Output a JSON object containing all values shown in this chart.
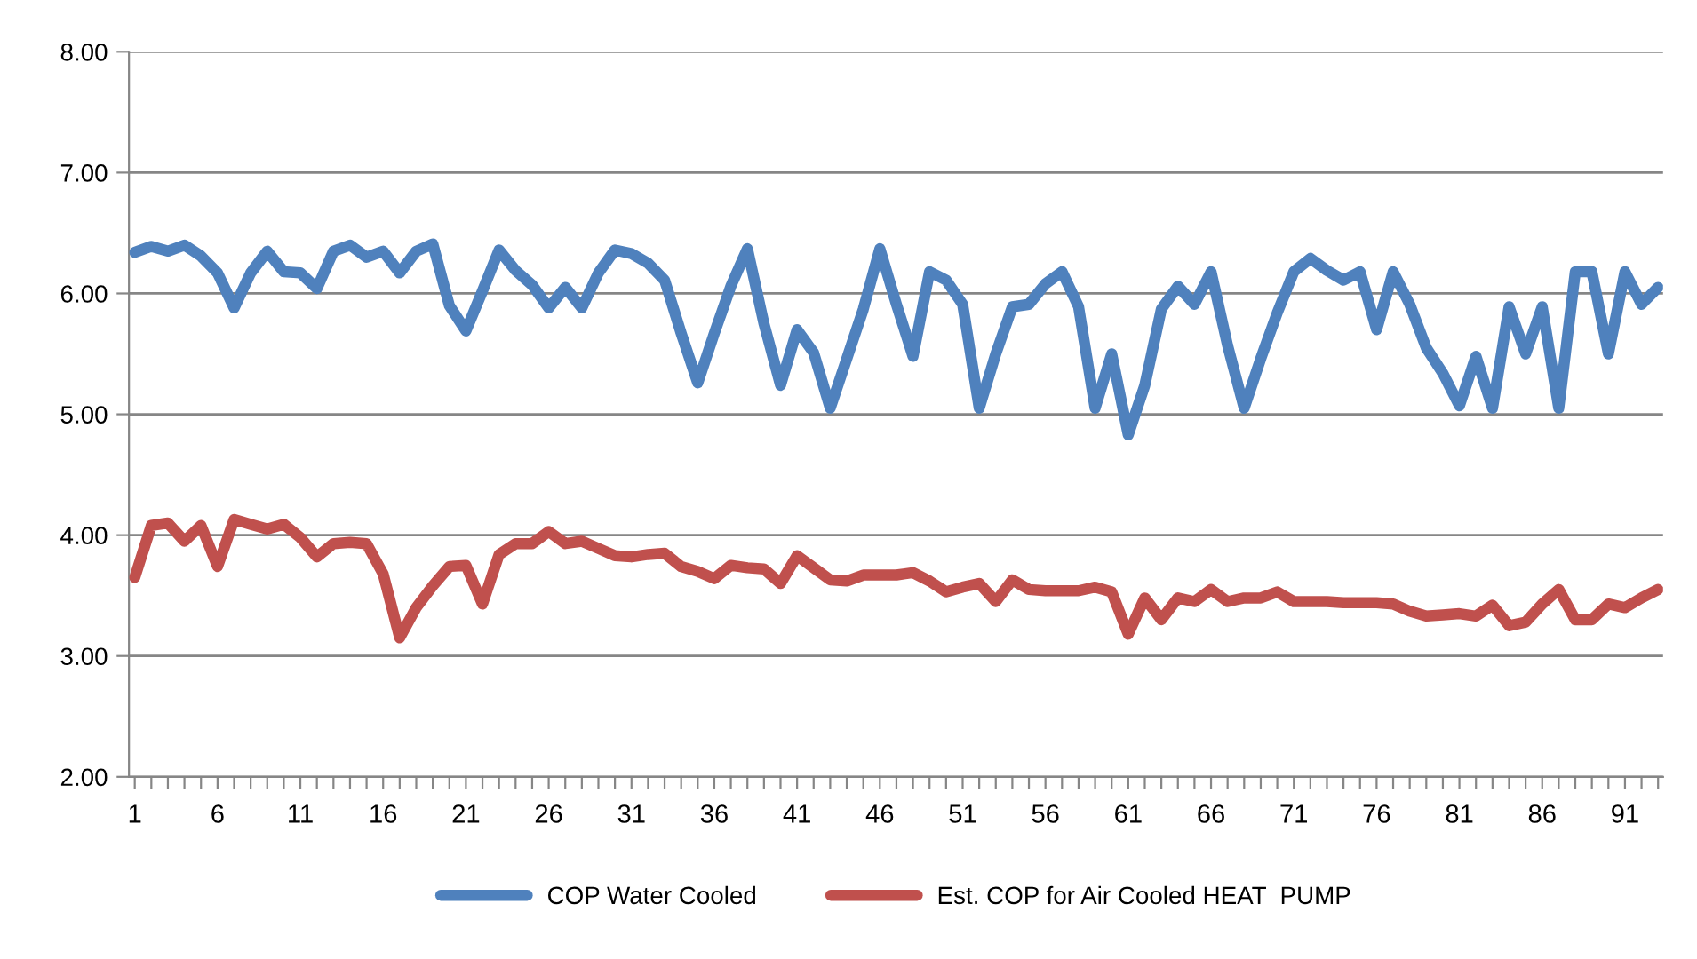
{
  "chart_data": {
    "type": "line",
    "categories": [
      "1",
      null,
      null,
      null,
      null,
      "6",
      null,
      null,
      null,
      null,
      "11",
      null,
      null,
      null,
      null,
      "16",
      null,
      null,
      null,
      null,
      "21",
      null,
      null,
      null,
      null,
      "26",
      null,
      null,
      null,
      null,
      "31",
      null,
      null,
      null,
      null,
      "36",
      null,
      null,
      null,
      null,
      "41",
      null,
      null,
      null,
      null,
      "46",
      null,
      null,
      null,
      null,
      "51",
      null,
      null,
      null,
      null,
      "56",
      null,
      null,
      null,
      null,
      "61",
      null,
      null,
      null,
      null,
      "66",
      null,
      null,
      null,
      null,
      "71",
      null,
      null,
      null,
      null,
      "76",
      null,
      null,
      null,
      null,
      "81",
      null,
      null,
      null,
      null,
      "86",
      null,
      null,
      null,
      null,
      "91",
      null,
      null
    ],
    "series": [
      {
        "name": "COP Water Cooled",
        "color": "#4f81bd",
        "values": [
          6.34,
          6.39,
          6.35,
          6.4,
          6.31,
          6.17,
          5.88,
          6.17,
          6.35,
          6.18,
          6.17,
          6.04,
          6.35,
          6.4,
          6.3,
          6.35,
          6.17,
          6.35,
          6.41,
          5.9,
          5.69,
          6.02,
          6.36,
          6.19,
          6.07,
          5.88,
          6.05,
          5.88,
          6.17,
          6.36,
          6.33,
          6.25,
          6.11,
          5.67,
          5.26,
          5.67,
          6.06,
          6.37,
          5.75,
          5.24,
          5.7,
          5.51,
          5.05,
          5.46,
          5.87,
          6.37,
          5.91,
          5.48,
          6.18,
          6.11,
          5.91,
          5.05,
          5.5,
          5.89,
          5.91,
          6.08,
          6.18,
          5.89,
          5.05,
          5.5,
          4.83,
          5.24,
          5.87,
          6.06,
          5.91,
          6.18,
          5.57,
          5.05,
          5.46,
          5.84,
          6.18,
          6.29,
          6.19,
          6.11,
          6.18,
          5.7,
          6.18,
          5.91,
          5.55,
          5.34,
          5.07,
          5.48,
          5.05,
          5.89,
          5.5,
          5.89,
          5.05,
          6.18,
          6.18,
          5.5,
          6.18,
          5.91,
          6.05
        ]
      },
      {
        "name": "Est. COP for Air Cooled HEAT  PUMP",
        "color": "#c0504d",
        "values": [
          3.65,
          4.08,
          4.1,
          3.95,
          4.08,
          3.74,
          4.13,
          4.09,
          4.05,
          4.09,
          3.98,
          3.82,
          3.93,
          3.94,
          3.93,
          3.68,
          3.15,
          3.4,
          3.58,
          3.74,
          3.75,
          3.43,
          3.84,
          3.93,
          3.93,
          4.03,
          3.93,
          3.95,
          3.89,
          3.83,
          3.82,
          3.84,
          3.85,
          3.74,
          3.7,
          3.64,
          3.75,
          3.73,
          3.72,
          3.6,
          3.83,
          3.73,
          3.63,
          3.62,
          3.67,
          3.67,
          3.67,
          3.69,
          3.62,
          3.53,
          3.57,
          3.6,
          3.45,
          3.63,
          3.55,
          3.54,
          3.54,
          3.54,
          3.57,
          3.53,
          3.18,
          3.48,
          3.3,
          3.48,
          3.45,
          3.55,
          3.45,
          3.48,
          3.48,
          3.53,
          3.45,
          3.45,
          3.45,
          3.44,
          3.44,
          3.44,
          3.43,
          3.37,
          3.33,
          3.34,
          3.35,
          3.33,
          3.42,
          3.25,
          3.28,
          3.43,
          3.55,
          3.3,
          3.3,
          3.43,
          3.4,
          3.48,
          3.55
        ]
      }
    ],
    "ylim": [
      2,
      8
    ],
    "yticks": [
      {
        "value": 2,
        "label": "2.00"
      },
      {
        "value": 3,
        "label": "3.00"
      },
      {
        "value": 4,
        "label": "4.00"
      },
      {
        "value": 5,
        "label": "5.00"
      },
      {
        "value": 6,
        "label": "6.00"
      },
      {
        "value": 7,
        "label": "7.00"
      },
      {
        "value": 8,
        "label": "8.00"
      }
    ],
    "grid": "y",
    "legend": "bottom",
    "marker": "none",
    "line_style": "solid"
  }
}
